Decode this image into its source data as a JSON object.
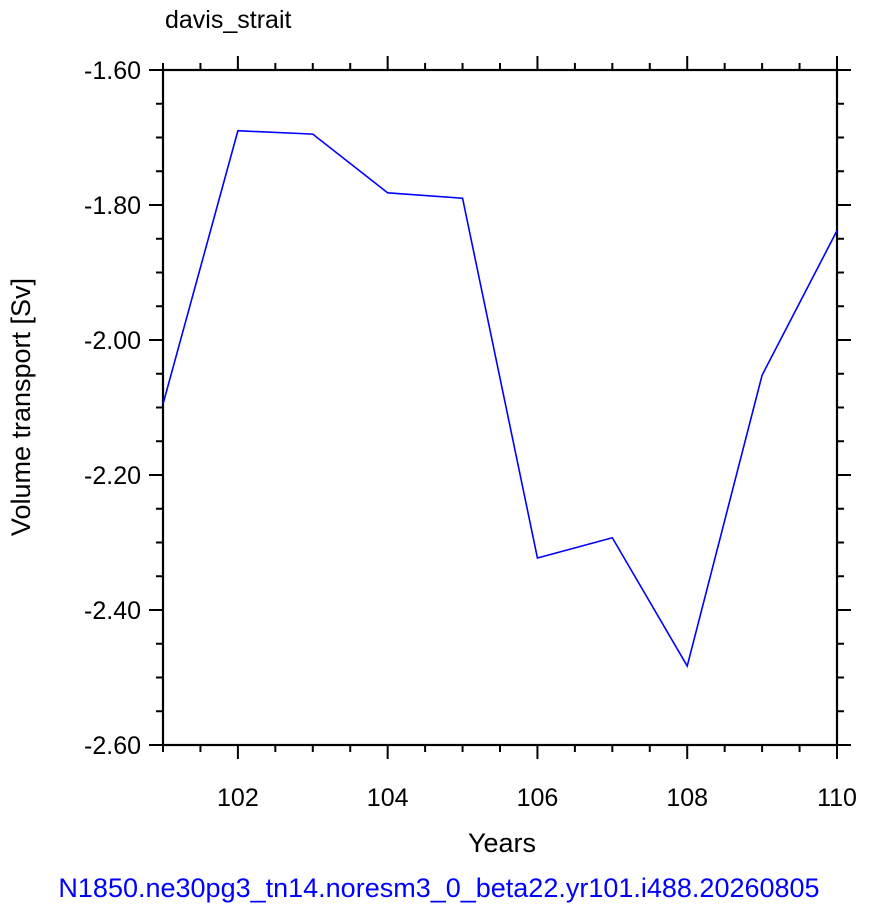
{
  "chart_data": {
    "type": "line",
    "title": "davis_strait",
    "xlabel": "Years",
    "ylabel": "Volume transport [Sv]",
    "footer": "N1850.ne30pg3_tn14.noresm3_0_beta22.yr101.i488.20260805",
    "xlim": [
      101,
      110
    ],
    "ylim": [
      -2.6,
      -1.6
    ],
    "x_ticks": [
      102,
      104,
      106,
      108,
      110
    ],
    "y_ticks": [
      "-1.60",
      "-1.80",
      "-2.00",
      "-2.20",
      "-2.40",
      "-2.60"
    ],
    "series": [
      {
        "color": "#0000ff",
        "x": [
          101,
          102,
          103,
          104,
          105,
          106,
          107,
          108,
          109,
          110
        ],
        "values": [
          -2.095,
          -1.69,
          -1.695,
          -1.782,
          -1.79,
          -2.323,
          -2.293,
          -2.483,
          -2.052,
          -1.838
        ]
      }
    ],
    "grid": false,
    "footer_color": "#0000ff"
  }
}
